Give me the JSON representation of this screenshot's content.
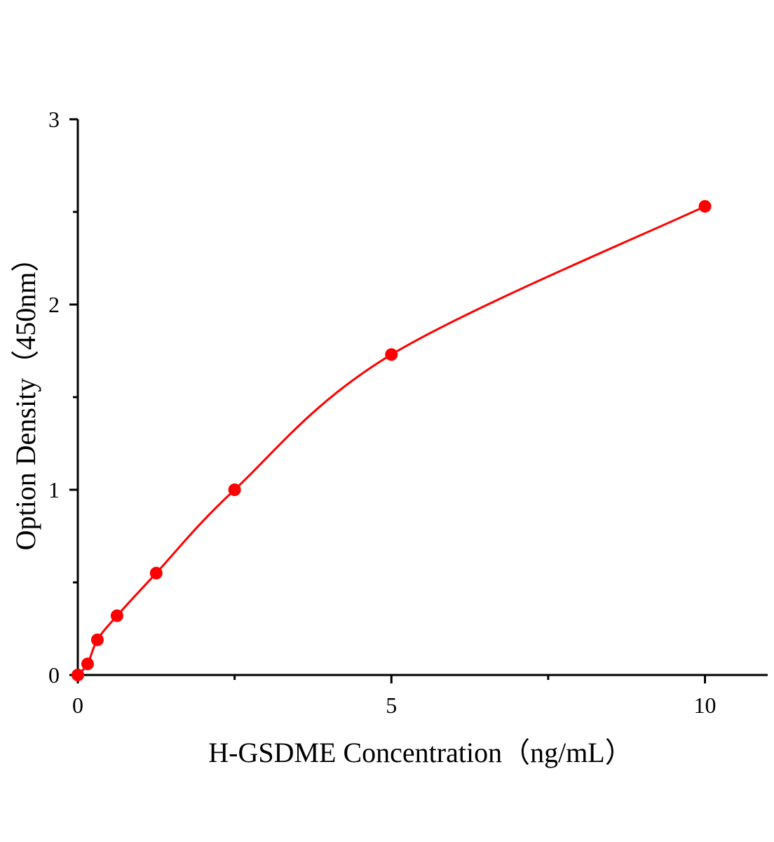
{
  "chart_data": {
    "type": "scatter",
    "title": "",
    "xlabel": "H-GSDME Concentration（ng/mL）",
    "ylabel": "Option Density（450nm）",
    "xlim": [
      0,
      11
    ],
    "ylim": [
      0,
      3
    ],
    "x_ticks": [
      0,
      5,
      10
    ],
    "x_tick_labels": [
      "0",
      "5",
      "10"
    ],
    "x_minor_ticks": [
      2.5,
      7.5
    ],
    "y_ticks": [
      0,
      1,
      2,
      3
    ],
    "y_tick_labels": [
      "0",
      "1",
      "2",
      "3"
    ],
    "y_minor_ticks": [
      0.5,
      1.5,
      2.5
    ],
    "grid": false,
    "legend": "none",
    "series": [
      {
        "color": "#ff0000",
        "fit_line": true,
        "x": [
          0,
          0.156,
          0.3125,
          0.625,
          1.25,
          2.5,
          5,
          10
        ],
        "y": [
          0.0,
          0.06,
          0.19,
          0.32,
          0.55,
          1.0,
          1.73,
          2.53
        ]
      }
    ]
  }
}
